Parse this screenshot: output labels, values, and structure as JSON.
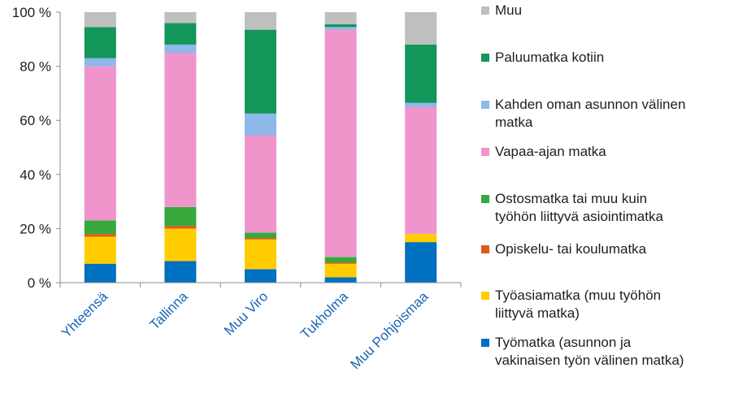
{
  "chart_data": {
    "type": "bar",
    "stacked": true,
    "percent": true,
    "categories": [
      "Yhteensä",
      "Tallinna",
      "Muu Viro",
      "Tukholma",
      "Muu Pohjoismaa"
    ],
    "ylim": [
      0,
      100
    ],
    "yticks": [
      0,
      20,
      40,
      60,
      80,
      100
    ],
    "ytick_labels": [
      "0 %",
      "20 %",
      "40 %",
      "60 %",
      "80 %",
      "100 %"
    ],
    "grid": false,
    "legend_position": "right",
    "series": [
      {
        "name": "Työmatka (asunnon ja vakinaisen työn välinen matka)",
        "color": "#0070c0",
        "values": [
          7,
          8,
          5,
          2,
          15
        ]
      },
      {
        "name": "Työasiamatka (muu työhön liittyvä matka)",
        "color": "#ffcc00",
        "values": [
          10,
          12,
          11,
          5,
          3
        ]
      },
      {
        "name": "Opiskelu- tai koulumatka",
        "color": "#e05a1a",
        "values": [
          1,
          1,
          0.5,
          0.5,
          0
        ]
      },
      {
        "name": "Ostosmatka tai muu kuin työhön liittyvä asiointimatka",
        "color": "#37a93c",
        "values": [
          5,
          7,
          2,
          2,
          0
        ]
      },
      {
        "name": "Vapaa-ajan matka",
        "color": "#f094cc",
        "values": [
          57,
          57,
          36,
          84,
          47
        ]
      },
      {
        "name": "Kahden oman asunnon välinen matka",
        "color": "#8db8e8",
        "values": [
          3,
          3,
          8,
          1,
          1.5
        ]
      },
      {
        "name": "Paluumatka kotiin",
        "color": "#13965a",
        "values": [
          11.5,
          8,
          31,
          1,
          21.5
        ]
      },
      {
        "name": "Muu",
        "color": "#bfbfbf",
        "values": [
          5.5,
          4,
          6.5,
          4.5,
          12
        ]
      }
    ]
  },
  "colors": {
    "axis": "#8c8c8c",
    "text": "#1e1e1e",
    "category_text": "#1a66b5"
  },
  "legend": [
    {
      "lines": [
        "Muu"
      ],
      "color": "#bfbfbf"
    },
    {
      "lines": [
        "Paluumatka kotiin"
      ],
      "color": "#13965a"
    },
    {
      "lines": [
        "Kahden oman asunnon välinen",
        "matka"
      ],
      "color": "#8db8e8"
    },
    {
      "lines": [
        "Vapaa-ajan matka"
      ],
      "color": "#f094cc"
    },
    {
      "lines": [
        "Ostosmatka tai muu kuin",
        "työhön liittyvä asiointimatka"
      ],
      "color": "#37a93c"
    },
    {
      "lines": [
        "Opiskelu- tai koulumatka"
      ],
      "color": "#e05a1a"
    },
    {
      "lines": [
        "Työasiamatka (muu työhön",
        "liittyvä matka)"
      ],
      "color": "#ffcc00"
    },
    {
      "lines": [
        "Työmatka (asunnon ja",
        "vakinaisen työn välinen matka)"
      ],
      "color": "#0070c0"
    }
  ]
}
